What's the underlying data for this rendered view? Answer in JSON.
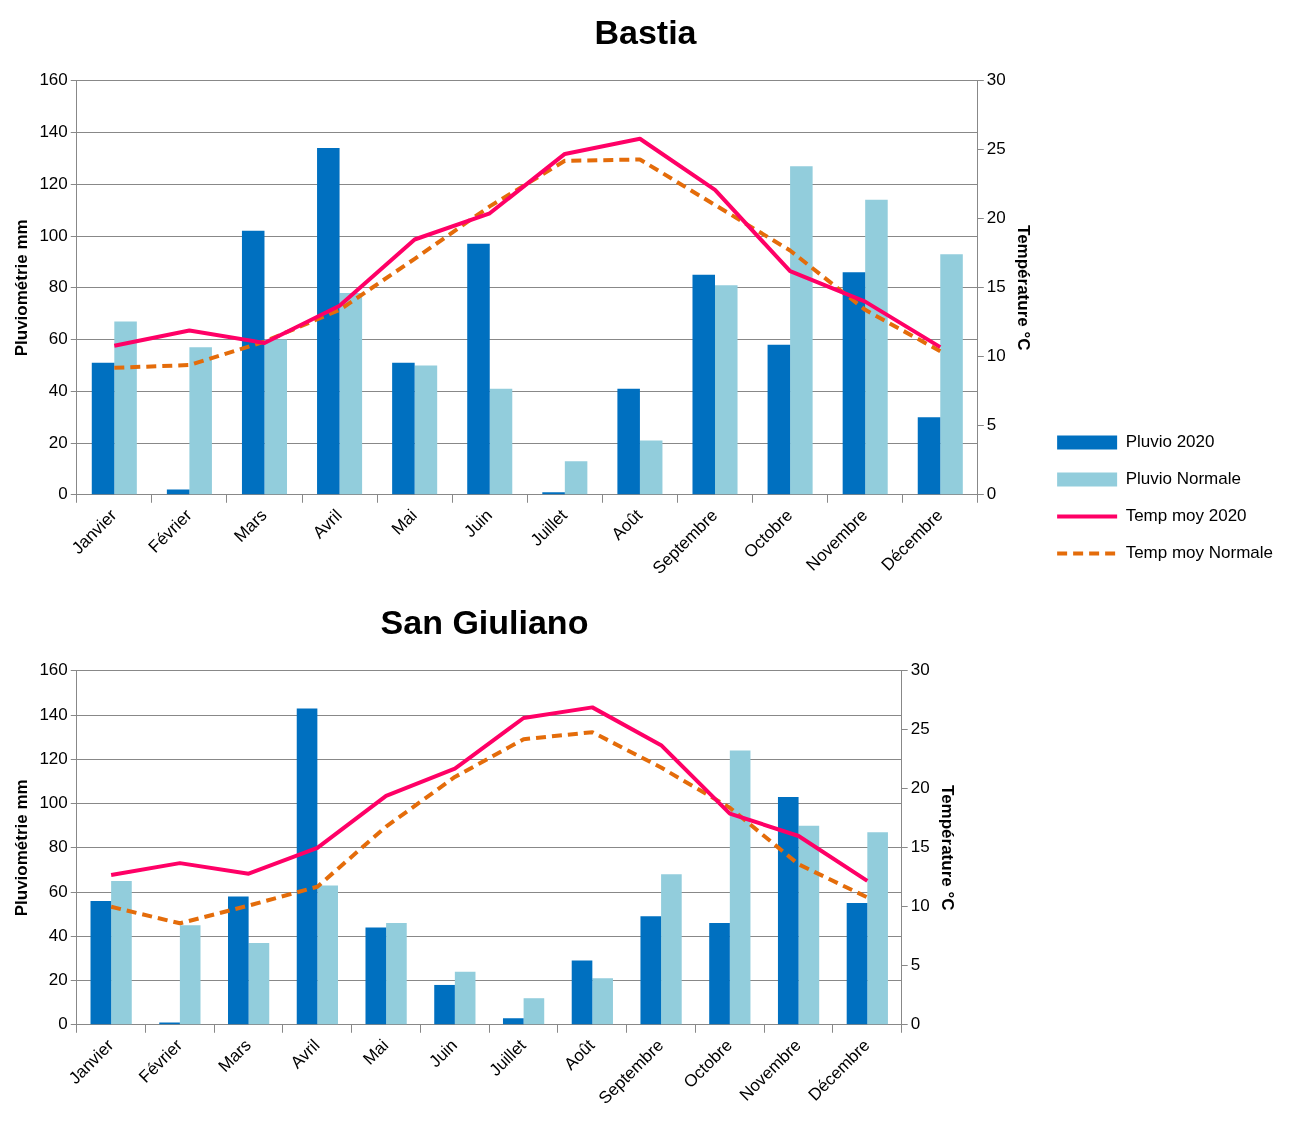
{
  "chart_data": [
    {
      "type": "bar",
      "title": "Bastia",
      "categories": [
        "Janvier",
        "Février",
        "Mars",
        "Avril",
        "Mai",
        "Juin",
        "Juillet",
        "Août",
        "Septembre",
        "Octobre",
        "Novembre",
        "Décembre"
      ],
      "ylabel": "Pluviométrie mm",
      "y2label": "Température °C",
      "ylim": [
        0,
        160
      ],
      "yticks": [
        0,
        20,
        40,
        60,
        80,
        100,
        120,
        140,
        160
      ],
      "y2lim": [
        0,
        30
      ],
      "y2ticks": [
        0,
        5,
        10,
        15,
        20,
        25,
        30
      ],
      "grid": "y",
      "legend": "right",
      "marker": "none",
      "series": [
        {
          "name": "Pluvio 2020",
          "color": "#0070c0",
          "values": [
            51,
            2,
            102,
            134,
            51,
            97,
            1,
            41,
            85,
            58,
            86,
            30
          ]
        },
        {
          "name": "Pluvio Normale",
          "color": "#92cddc",
          "values": [
            67,
            57,
            60,
            78,
            50,
            41,
            13,
            21,
            81,
            127,
            114,
            93
          ]
        },
        {
          "name": "Temp moy 2020",
          "type": "line",
          "axis": "y2",
          "line_style": "solid",
          "color": "#ff0066",
          "values": [
            10.8,
            11.9,
            11.0,
            13.7,
            18.5,
            20.4,
            24.7,
            25.8,
            22.1,
            16.2,
            14.0,
            10.7
          ]
        },
        {
          "name": "Temp moy Normale",
          "type": "line",
          "axis": "y2",
          "line_style": "dashed",
          "color": "#e46c0a",
          "values": [
            9.2,
            9.4,
            11.1,
            13.4,
            17.1,
            20.9,
            24.2,
            24.3,
            21.0,
            17.7,
            13.4,
            10.4
          ]
        }
      ]
    },
    {
      "type": "bar",
      "title": "San Giuliano",
      "categories": [
        "Janvier",
        "Février",
        "Mars",
        "Avril",
        "Mai",
        "Juin",
        "Juillet",
        "Août",
        "Septembre",
        "Octobre",
        "Novembre",
        "Décembre"
      ],
      "ylabel": "Pluviométrie mm",
      "y2label": "Température °C",
      "ylim": [
        0,
        160
      ],
      "yticks": [
        0,
        20,
        40,
        60,
        80,
        100,
        120,
        140,
        160
      ],
      "y2lim": [
        0,
        30
      ],
      "y2ticks": [
        0,
        5,
        10,
        15,
        20,
        25,
        30
      ],
      "grid": "y",
      "marker": "none",
      "series": [
        {
          "color": "#0070c0",
          "values": [
            56,
            1,
            58,
            143,
            44,
            18,
            3,
            29,
            49,
            46,
            103,
            55
          ]
        },
        {
          "color": "#92cddc",
          "values": [
            65,
            45,
            37,
            63,
            46,
            24,
            12,
            21,
            68,
            124,
            90,
            87
          ]
        },
        {
          "type": "line",
          "axis": "y2",
          "line_style": "solid",
          "color": "#ff0066",
          "values": [
            12.7,
            13.7,
            12.8,
            15.0,
            19.4,
            21.7,
            26.0,
            26.9,
            23.7,
            17.9,
            16.0,
            12.2
          ]
        },
        {
          "type": "line",
          "axis": "y2",
          "line_style": "dashed",
          "color": "#e46c0a",
          "values": [
            10.0,
            8.6,
            10.1,
            11.7,
            16.8,
            21.0,
            24.2,
            24.8,
            21.8,
            18.4,
            13.6,
            10.8
          ]
        }
      ]
    }
  ]
}
